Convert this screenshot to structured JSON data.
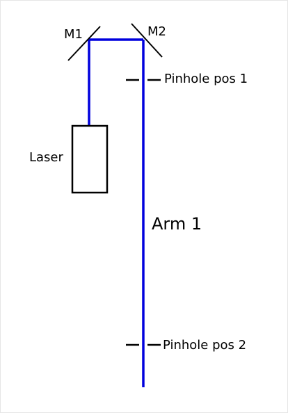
{
  "diagram": {
    "labels": {
      "mirror1": "M1",
      "mirror2": "M2",
      "laser": "Laser",
      "pinhole1": "Pinhole pos 1",
      "pinhole2": "Pinhole pos 2",
      "arm": "Arm 1"
    },
    "colors": {
      "beam": "#0000dd",
      "component": "#000000",
      "background": "#ffffff"
    }
  }
}
